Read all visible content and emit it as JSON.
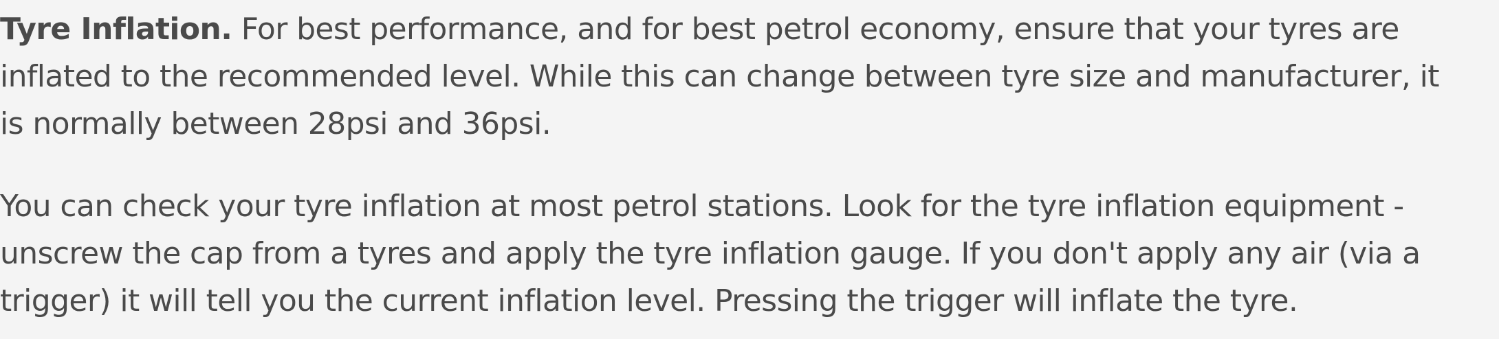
{
  "paragraph1": {
    "heading": "Tyre Inflation.",
    "text": " For best performance, and for best petrol economy, ensure that your tyres are inflated to the recommended level. While this can change between tyre size and manufacturer, it is normally between 28psi and 36psi."
  },
  "paragraph2": {
    "text": "You can check your tyre inflation at most petrol stations. Look for the tyre inflation equipment - unscrew the cap from a tyres and apply the tyre inflation gauge. If you don't apply any air (via a trigger) it will tell you the current inflation level. Pressing the trigger will inflate the tyre."
  }
}
